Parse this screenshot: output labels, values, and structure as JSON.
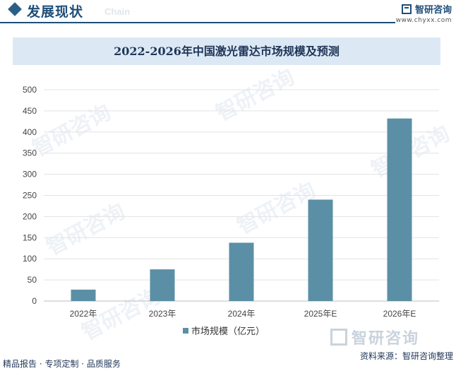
{
  "header": {
    "section_title": "发展现状",
    "section_sub": "Chain",
    "brand_name": "智研咨询",
    "brand_url": "www.chyxx.com"
  },
  "watermark_text": "智研咨询",
  "footer": {
    "left": "精品报告 · 专项定制 · 品质服务",
    "logo_text": "智研咨询",
    "source": "资料来源：智研咨询整理"
  },
  "colors": {
    "bar": "#5b8fa6",
    "title_band": "#dce9f5",
    "accent": "#1f4e79"
  },
  "chart_data": {
    "type": "bar",
    "title": "2022-2026年中国激光雷达市场规模及预测",
    "categories": [
      "2022年",
      "2023年",
      "2024年",
      "2025年E",
      "2026年E"
    ],
    "series": [
      {
        "name": "市场规模（亿元）",
        "values": [
          27,
          75,
          138,
          240,
          432
        ]
      }
    ],
    "ylim": [
      0,
      500
    ],
    "yticks": [
      0,
      50,
      100,
      150,
      200,
      250,
      300,
      350,
      400,
      450,
      500
    ],
    "grid": true,
    "legend": "bottom"
  }
}
